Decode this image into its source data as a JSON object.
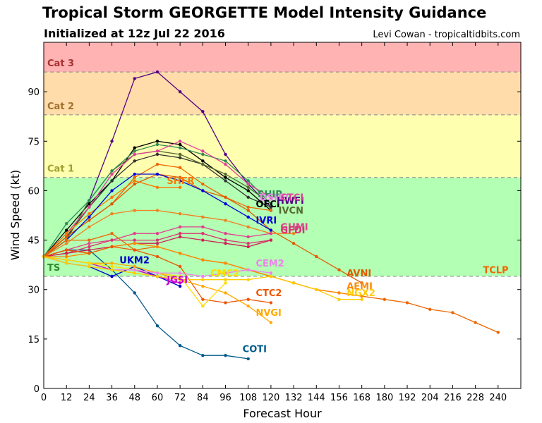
{
  "header": {
    "title": "Tropical Storm GEORGETTE Model Intensity Guidance",
    "subtitle": "Initialized at 12z Jul 22 2016",
    "credit": "Levi Cowan - tropicaltidbits.com"
  },
  "chart_data": {
    "type": "line",
    "xlabel": "Forecast Hour",
    "ylabel": "Wind Speed (kt)",
    "xlim": [
      0,
      252
    ],
    "ylim": [
      0,
      105
    ],
    "xticks": [
      0,
      12,
      24,
      36,
      48,
      60,
      72,
      84,
      96,
      108,
      120,
      132,
      144,
      156,
      168,
      180,
      192,
      204,
      216,
      228,
      240
    ],
    "yticks": [
      0,
      15,
      30,
      45,
      60,
      75,
      90
    ],
    "grid": false,
    "bands": [
      {
        "label": "TS",
        "from": 34,
        "to": 64,
        "color": "#b3ffb3",
        "label_color": "#2e8b2e"
      },
      {
        "label": "Cat 1",
        "from": 64,
        "to": 83,
        "color": "#ffffb0",
        "label_color": "#a0a030"
      },
      {
        "label": "Cat 2",
        "from": 83,
        "to": 96,
        "color": "#ffdcaa",
        "label_color": "#a07030"
      },
      {
        "label": "Cat 3",
        "from": 96,
        "to": 105,
        "color": "#ffb3b3",
        "label_color": "#a83030"
      }
    ],
    "series": [
      {
        "name": "COTI",
        "color": "#005a8c",
        "x": [
          0,
          12,
          24,
          36,
          48,
          60,
          72,
          84,
          96,
          108
        ],
        "values": [
          40,
          42,
          42,
          36,
          29,
          19,
          13,
          10,
          10,
          9
        ]
      },
      {
        "name": "UKM2",
        "color": "#0000cc",
        "x": [
          0,
          12,
          24,
          36,
          48,
          60,
          72
        ],
        "values": [
          40,
          38,
          37,
          34,
          37,
          34,
          31
        ]
      },
      {
        "name": "JGSI",
        "color": "#cc00cc",
        "x": [
          0,
          12,
          24,
          36,
          48,
          60,
          72
        ],
        "values": [
          40,
          39,
          38,
          36,
          36,
          34,
          32
        ]
      },
      {
        "name": "",
        "color": "#550088",
        "x": [
          0,
          12,
          24,
          36,
          48,
          60,
          72,
          84,
          96,
          108,
          120
        ],
        "values": [
          40,
          45,
          57,
          75,
          94,
          96,
          90,
          84,
          71,
          62,
          55
        ]
      },
      {
        "name": "",
        "color": "#000000",
        "x": [
          0,
          12,
          24,
          36,
          48,
          60,
          72,
          84,
          96,
          108,
          120
        ],
        "values": [
          40,
          48,
          56,
          63,
          73,
          75,
          74,
          69,
          64,
          60,
          54
        ]
      },
      {
        "name": "",
        "color": "#333333",
        "x": [
          0,
          12,
          24,
          36,
          48,
          60,
          72,
          84,
          96,
          108,
          120
        ],
        "values": [
          40,
          46,
          55,
          63,
          69,
          71,
          70,
          68,
          63,
          58,
          55
        ]
      },
      {
        "name": "",
        "color": "#556b2f",
        "x": [
          0,
          12,
          24,
          36,
          48,
          60,
          72,
          84,
          96,
          108,
          120
        ],
        "values": [
          40,
          45,
          57,
          66,
          71,
          72,
          71,
          68,
          65,
          61,
          56
        ]
      },
      {
        "name": "",
        "color": "#2e8b57",
        "x": [
          0,
          12,
          24,
          36,
          48,
          60,
          72,
          84,
          96,
          108,
          120
        ],
        "values": [
          40,
          50,
          57,
          66,
          72,
          74,
          73,
          71,
          69,
          63,
          56
        ]
      },
      {
        "name": "",
        "color": "#e0409a",
        "x": [
          0,
          12,
          24,
          36,
          48,
          60,
          72,
          84,
          96,
          108,
          120
        ],
        "values": [
          40,
          47,
          55,
          65,
          71,
          72,
          75,
          72,
          68,
          62,
          58
        ]
      },
      {
        "name": "SHFR",
        "color": "#ff7700",
        "x": [
          0,
          12,
          24,
          36,
          48,
          60,
          72
        ],
        "values": [
          40,
          47,
          53,
          58,
          63,
          61,
          61
        ]
      },
      {
        "name": "",
        "color": "#ee6600",
        "x": [
          0,
          12,
          24,
          36,
          48,
          60,
          72,
          84,
          96,
          108,
          120
        ],
        "values": [
          40,
          46,
          51,
          56,
          64,
          68,
          67,
          62,
          58,
          55,
          54
        ]
      },
      {
        "name": "",
        "color": "#e05a00",
        "x": [
          0,
          12,
          24,
          36,
          48,
          60,
          72,
          84,
          96,
          108,
          120,
          132,
          144,
          156,
          168
        ],
        "values": [
          40,
          46,
          51,
          56,
          62,
          65,
          64,
          60,
          58,
          54,
          48,
          44,
          40,
          36,
          32
        ]
      },
      {
        "name": "IVRI",
        "color": "#0000dd",
        "x": [
          0,
          12,
          24,
          36,
          48,
          60,
          72,
          84,
          96,
          108,
          120
        ],
        "values": [
          40,
          45,
          52,
          60,
          65,
          65,
          63,
          60,
          56,
          52,
          48
        ]
      },
      {
        "name": "",
        "color": "#f08020",
        "x": [
          0,
          12,
          24,
          36,
          48,
          60,
          72,
          84,
          96,
          108,
          120,
          132
        ],
        "values": [
          40,
          44,
          49,
          53,
          54,
          54,
          53,
          52,
          51,
          49,
          47,
          47
        ]
      },
      {
        "name": "",
        "color": "#e04090",
        "x": [
          0,
          12,
          24,
          36,
          48,
          60,
          72,
          84,
          96,
          108,
          120
        ],
        "values": [
          40,
          42,
          44,
          45,
          47,
          47,
          49,
          49,
          47,
          46,
          47
        ]
      },
      {
        "name": "",
        "color": "#dd3377",
        "x": [
          0,
          12,
          24,
          36,
          48,
          60,
          72,
          84,
          96,
          108,
          120
        ],
        "values": [
          40,
          41,
          43,
          45,
          45,
          45,
          47,
          47,
          45,
          44,
          45
        ]
      },
      {
        "name": "",
        "color": "#cc2255",
        "x": [
          0,
          12,
          24,
          36,
          48,
          60,
          72,
          84,
          96,
          108,
          120
        ],
        "values": [
          40,
          41,
          42,
          43,
          44,
          44,
          46,
          45,
          44,
          43,
          45
        ]
      },
      {
        "name": "TCLP",
        "color": "#ee6600",
        "x": [
          0,
          12,
          24,
          36,
          48,
          60,
          72,
          84,
          96,
          108,
          120,
          132,
          144,
          156,
          168,
          180,
          192,
          204,
          216,
          228,
          240
        ],
        "values": [
          40,
          45,
          45,
          47,
          42,
          43,
          41,
          39,
          38,
          36,
          34,
          32,
          30,
          29,
          28,
          27,
          26,
          24,
          23,
          20,
          17
        ]
      },
      {
        "name": "",
        "color": "#ff8800",
        "x": [
          0,
          12,
          24,
          36,
          48,
          60,
          72,
          84,
          96,
          108,
          120,
          132,
          144,
          156,
          168
        ],
        "values": [
          40,
          40,
          41,
          43,
          44,
          43,
          41,
          39,
          38,
          36,
          34,
          32,
          30,
          29,
          28
        ]
      },
      {
        "name": "CTC2",
        "color": "#ee5500",
        "x": [
          0,
          12,
          24,
          36,
          48,
          60,
          72,
          84,
          96,
          108,
          120
        ],
        "values": [
          40,
          42,
          41,
          43,
          42,
          40,
          37,
          27,
          26,
          27,
          26
        ]
      },
      {
        "name": "NVGI",
        "color": "#ffaa00",
        "x": [
          0,
          12,
          24,
          36,
          48,
          60,
          72,
          84,
          96,
          108,
          120
        ],
        "values": [
          40,
          39,
          38,
          38,
          37,
          35,
          33,
          31,
          29,
          25,
          20
        ]
      },
      {
        "name": "",
        "color": "#ffdd00",
        "x": [
          0,
          12,
          24,
          36,
          48,
          60,
          72,
          84,
          96
        ],
        "values": [
          40,
          39,
          38,
          37,
          36,
          35,
          34,
          25,
          32
        ]
      },
      {
        "name": "CEM2",
        "color": "#ee82ee",
        "x": [
          0,
          12,
          24,
          36,
          48,
          60,
          72,
          84,
          96,
          108,
          120
        ],
        "values": [
          40,
          38,
          37,
          36,
          36,
          35,
          35,
          34,
          35,
          36,
          35
        ]
      },
      {
        "name": "",
        "color": "#ffcc00",
        "x": [
          0,
          12,
          24,
          36,
          48,
          60,
          72,
          84,
          96,
          108,
          120,
          132,
          144,
          156,
          168
        ],
        "values": [
          40,
          38,
          37,
          36,
          35,
          34,
          33,
          33,
          33,
          33,
          34,
          32,
          30,
          27,
          27
        ]
      }
    ],
    "labels": [
      {
        "text": "COTI",
        "x": 105,
        "y": 11,
        "color": "#005a8c"
      },
      {
        "text": "UKM2",
        "x": 40,
        "y": 38,
        "color": "#0000cc"
      },
      {
        "text": "JGSI",
        "x": 65,
        "y": 32,
        "color": "#cc00cc"
      },
      {
        "text": "SHFR",
        "x": 65,
        "y": 62,
        "color": "#ff7700"
      },
      {
        "text": "SHIP",
        "x": 113,
        "y": 58,
        "color": "#2e8b57"
      },
      {
        "text": "OFCI",
        "x": 112,
        "y": 55,
        "color": "#000000"
      },
      {
        "text": "DSHP",
        "x": 114,
        "y": 57,
        "color": "#ee82ee"
      },
      {
        "text": "HWFI",
        "x": 123,
        "y": 56,
        "color": "#550088"
      },
      {
        "text": "IVCN",
        "x": 124,
        "y": 53,
        "color": "#556b2f"
      },
      {
        "text": "CTCI",
        "x": 125,
        "y": 57,
        "color": "#e0409a"
      },
      {
        "text": "IVRI",
        "x": 112,
        "y": 50,
        "color": "#0000dd"
      },
      {
        "text": "GHMI",
        "x": 125,
        "y": 48,
        "color": "#e04090"
      },
      {
        "text": "GFDI",
        "x": 125,
        "y": 47,
        "color": "#dd3377"
      },
      {
        "text": "CEM2",
        "x": 112,
        "y": 37,
        "color": "#ee82ee"
      },
      {
        "text": "CMC2",
        "x": 88,
        "y": 34,
        "color": "#ffdd00"
      },
      {
        "text": "CTC2",
        "x": 112,
        "y": 28,
        "color": "#ee5500"
      },
      {
        "text": "NVGI",
        "x": 112,
        "y": 22,
        "color": "#ffaa00"
      },
      {
        "text": "AVNI",
        "x": 160,
        "y": 34,
        "color": "#e05a00"
      },
      {
        "text": "AEMI",
        "x": 160,
        "y": 30,
        "color": "#ff8800"
      },
      {
        "text": "NGX2",
        "x": 160,
        "y": 28,
        "color": "#ffcc00"
      },
      {
        "text": "TCLP",
        "x": 232,
        "y": 35,
        "color": "#ee6600"
      }
    ]
  }
}
